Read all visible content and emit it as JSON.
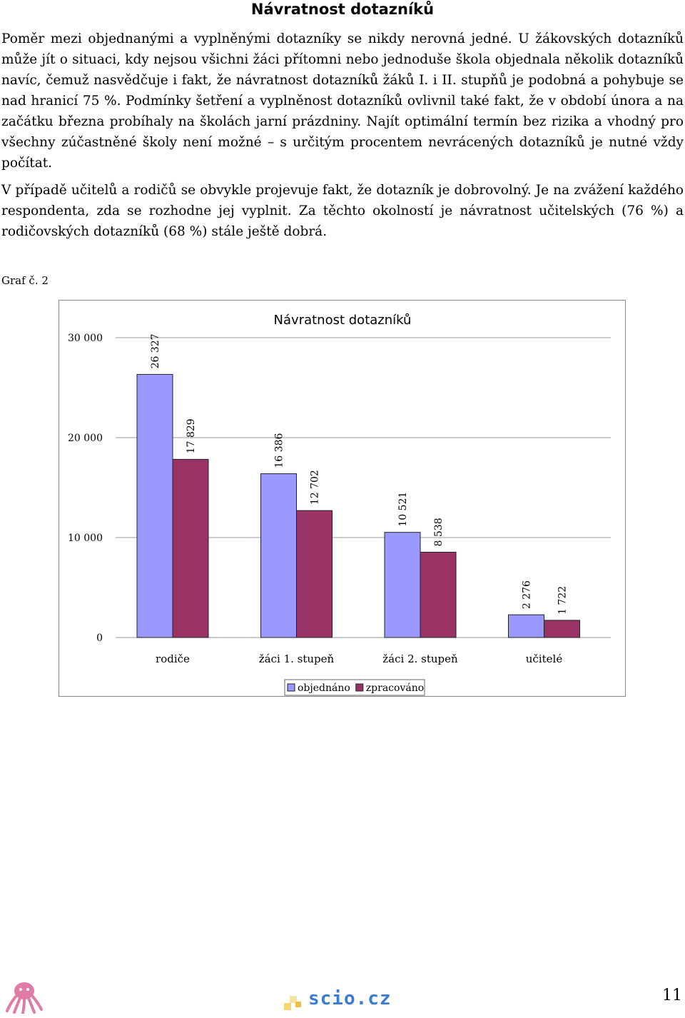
{
  "title": "Návratnost dotazníků",
  "paragraphs": [
    "Poměr mezi objednanými a vyplněnými dotazníky se nikdy nerovná jedné. U žákovských dotazníků může jít o situaci, kdy nejsou všichni žáci přítomni nebo jednoduše škola objednala několik dotazníků navíc, čemuž nasvědčuje i fakt, že návratnost dotazníků žáků I. i II. stupňů je podobná a pohybuje se nad hranicí 75 %. Podmínky šetření a vyplněnost dotazníků ovlivnil také fakt, že v období února a na začátku března probíhaly na školách jarní prázdniny. Najít optimální termín bez rizika a vhodný pro všechny zúčastněné školy není možné – s určitým procentem nevrácených dotazníků je nutné vždy počítat.",
    "V případě učitelů a rodičů se obvykle projevuje fakt, že dotazník je dobrovolný. Je na zvážení každého respondenta, zda se rozhodne jej vyplnit. Za těchto okolností je návratnost učitelských (76 %) a rodičovských dotazníků (68 %) stále ještě dobrá."
  ],
  "graph_caption": "Graf č. 2",
  "chart_data": {
    "type": "bar",
    "title": "Návratnost dotazníků",
    "categories": [
      "rodiče",
      "žáci 1. stupeň",
      "žáci 2. stupeň",
      "učitelé"
    ],
    "series": [
      {
        "name": "objednáno",
        "values": [
          26327,
          16386,
          10521,
          2276
        ],
        "labels": [
          "26 327",
          "16 386",
          "10 521",
          "2 276"
        ],
        "color": "#9999ff"
      },
      {
        "name": "zpracováno",
        "values": [
          17829,
          12702,
          8538,
          1722
        ],
        "labels": [
          "17 829",
          "12 702",
          "8 538",
          "1 722"
        ],
        "color": "#993366"
      }
    ],
    "yticks": [
      0,
      10000,
      20000,
      30000
    ],
    "ytick_labels": [
      "0",
      "10 000",
      "20 000",
      "30 000"
    ],
    "ylim": [
      0,
      30000
    ],
    "grid": true,
    "legend": "bottom"
  },
  "footer": {
    "brand": "scio.cz",
    "page_number": "11"
  }
}
